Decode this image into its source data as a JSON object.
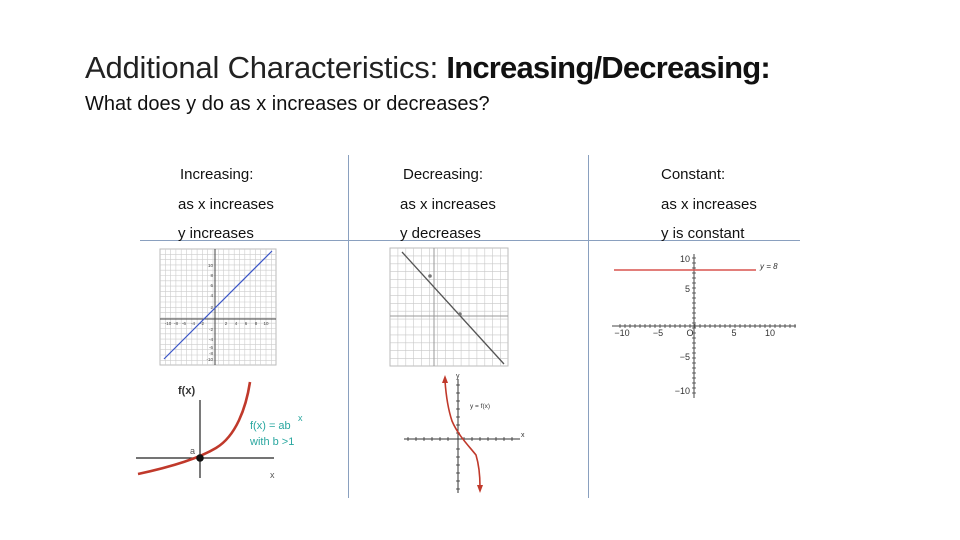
{
  "slide": {
    "title_prefix": "Additional Characteristics: ",
    "title_emphasis": "Increasing/Decreasing:",
    "subtitle": "What does y do as x increases or decreases?"
  },
  "columns": [
    {
      "heading": "Increasing:",
      "line1": "as x increases",
      "line2": "y increases"
    },
    {
      "heading": "Decreasing:",
      "line1": "as x increases",
      "line2": "y decreases"
    },
    {
      "heading": "Constant:",
      "line1": "as x increases",
      "line2": "y is constant"
    }
  ],
  "graphs": {
    "increasing_grid": {
      "x_ticks": [
        "-10",
        "-8",
        "-6",
        "-4",
        "-2",
        "2",
        "4",
        "6",
        "8",
        "10"
      ],
      "y_ticks": [
        "10",
        "8",
        "6",
        "4",
        "2",
        "-2",
        "-4",
        "-6",
        "-8",
        "-10"
      ],
      "line_color": "#3a55c8"
    },
    "exponential": {
      "y_axis_label": "f(x)",
      "x_axis_label": "x",
      "point_label": "a",
      "formula": "f(x) = ab",
      "exponent": "x",
      "condition": "with b >1",
      "curve_color": "#c0392b",
      "label_color": "#2aa7a0"
    },
    "decreasing_grid": {
      "line_color": "#555555"
    },
    "decreasing_sketch": {
      "y_axis_label": "y",
      "x_axis_label": "x",
      "function_label": "y = f(x)",
      "curve_color": "#c0392b"
    },
    "constant": {
      "line_label": "y = 8",
      "x_ticks": [
        "−10",
        "−5",
        "O",
        "5",
        "10"
      ],
      "y_ticks": [
        "10",
        "5",
        "−5",
        "−10"
      ],
      "line_color": "#d9534f"
    }
  }
}
